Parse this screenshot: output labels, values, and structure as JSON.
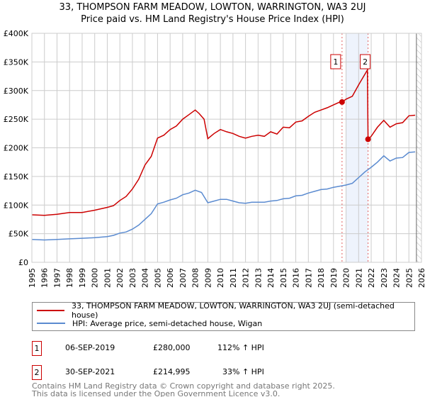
{
  "title": "33, THOMPSON FARM MEADOW, LOWTON, WARRINGTON, WA3 2UJ",
  "subtitle": "Price paid vs. HM Land Registry's House Price Index (HPI)",
  "colors": {
    "property": "#cc0000",
    "hpi": "#5b8bd0",
    "shade": "#eef3fc"
  },
  "chart_data": {
    "type": "line",
    "xlim": [
      1995,
      2026
    ],
    "ylim": [
      0,
      400000
    ],
    "yticks": [
      0,
      50000,
      100000,
      150000,
      200000,
      250000,
      300000,
      350000,
      400000
    ],
    "ytick_labels": [
      "£0",
      "£50K",
      "£100K",
      "£150K",
      "£200K",
      "£250K",
      "£300K",
      "£350K",
      "£400K"
    ],
    "xticks": [
      "1995",
      "1996",
      "1997",
      "1998",
      "1999",
      "2000",
      "2001",
      "2002",
      "2003",
      "2004",
      "2005",
      "2006",
      "2007",
      "2008",
      "2009",
      "2010",
      "2011",
      "2012",
      "2013",
      "2014",
      "2015",
      "2016",
      "2017",
      "2018",
      "2019",
      "2020",
      "2021",
      "2022",
      "2023",
      "2024",
      "2025",
      "2026"
    ],
    "shaded_range": [
      2020.0,
      2021.75
    ],
    "future_hatch_from": 2025.6,
    "series": [
      {
        "name": "33, THOMPSON FARM MEADOW, LOWTON, WARRINGTON, WA3 2UJ (semi-detached house)",
        "color": "#cc0000",
        "x": [
          1995,
          1996,
          1997,
          1998,
          1999,
          2000,
          2001,
          2001.5,
          2002,
          2002.5,
          2003,
          2003.5,
          2004,
          2004.5,
          2005,
          2005.5,
          2006,
          2006.5,
          2007,
          2007.5,
          2008,
          2008.3,
          2008.7,
          2009,
          2009.5,
          2010,
          2010.5,
          2011,
          2011.5,
          2012,
          2012.5,
          2013,
          2013.5,
          2014,
          2014.5,
          2015,
          2015.5,
          2016,
          2016.5,
          2017,
          2017.5,
          2018,
          2018.5,
          2019,
          2019.5,
          2019.68,
          2020,
          2020.5,
          2021,
          2021.7,
          2021.75,
          2022,
          2022.5,
          2023,
          2023.5,
          2024,
          2024.5,
          2025,
          2025.5
        ],
        "y": [
          83000,
          82000,
          84000,
          87000,
          87000,
          91000,
          96000,
          99000,
          108000,
          115000,
          128000,
          145000,
          170000,
          185000,
          217000,
          222000,
          232000,
          238000,
          250000,
          258000,
          266000,
          260000,
          250000,
          216000,
          225000,
          232000,
          228000,
          225000,
          220000,
          217000,
          220000,
          222000,
          220000,
          228000,
          224000,
          236000,
          235000,
          245000,
          247000,
          255000,
          262000,
          266000,
          270000,
          275000,
          280000,
          280000,
          285000,
          290000,
          310000,
          336000,
          214995,
          220000,
          236000,
          248000,
          236000,
          242000,
          244000,
          256000,
          257000
        ]
      },
      {
        "name": "HPI: Average price, semi-detached house, Wigan",
        "color": "#5b8bd0",
        "x": [
          1995,
          1996,
          1997,
          1998,
          1999,
          2000,
          2001,
          2001.5,
          2002,
          2002.5,
          2003,
          2003.5,
          2004,
          2004.5,
          2005,
          2005.5,
          2006,
          2006.5,
          2007,
          2007.5,
          2008,
          2008.5,
          2009,
          2009.5,
          2010,
          2010.5,
          2011,
          2011.5,
          2012,
          2012.5,
          2013,
          2013.5,
          2014,
          2014.5,
          2015,
          2015.5,
          2016,
          2016.5,
          2017,
          2017.5,
          2018,
          2018.5,
          2019,
          2019.5,
          2020,
          2020.5,
          2021,
          2021.5,
          2022,
          2022.5,
          2023,
          2023.5,
          2024,
          2024.5,
          2025,
          2025.5
        ],
        "y": [
          40000,
          39000,
          40000,
          41000,
          42000,
          43000,
          45000,
          47000,
          51000,
          53000,
          58000,
          65000,
          75000,
          85000,
          102000,
          105000,
          109000,
          112000,
          118000,
          121000,
          126000,
          122000,
          104000,
          107000,
          110000,
          110000,
          107000,
          104000,
          103000,
          105000,
          105000,
          105000,
          107000,
          108000,
          111000,
          112000,
          116000,
          117000,
          121000,
          124000,
          127000,
          128000,
          131000,
          133000,
          135000,
          138000,
          148000,
          158000,
          166000,
          175000,
          186000,
          177000,
          182000,
          183000,
          192000,
          193000
        ]
      }
    ],
    "sales": [
      {
        "id": "1",
        "x": 2019.68,
        "y": 280000,
        "date": "06-SEP-2019",
        "price": "£280,000",
        "hpi": "112% ↑ HPI"
      },
      {
        "id": "2",
        "x": 2021.75,
        "y": 214995,
        "date": "30-SEP-2021",
        "price": "£214,995",
        "hpi": "33% ↑ HPI"
      }
    ]
  },
  "footer": {
    "line1": "Contains HM Land Registry data © Crown copyright and database right 2025.",
    "line2": "This data is licensed under the Open Government Licence v3.0."
  }
}
